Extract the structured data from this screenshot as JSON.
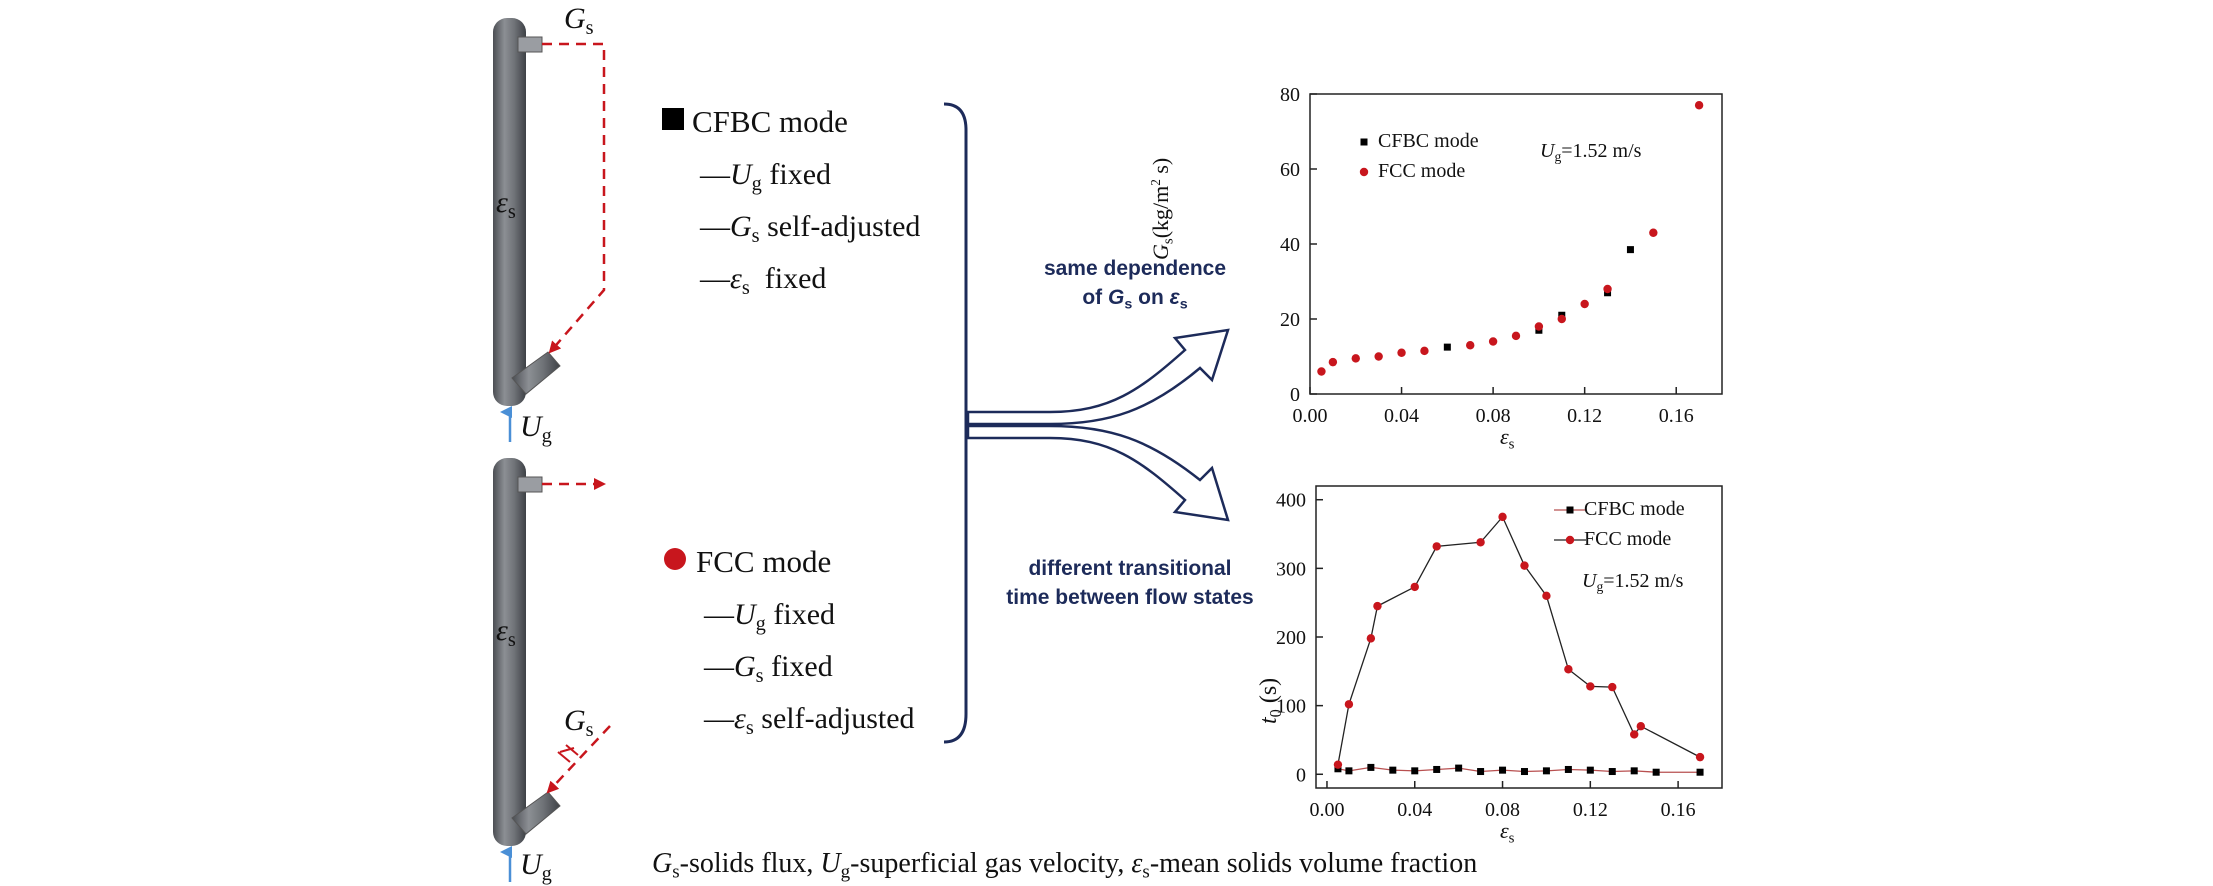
{
  "colors": {
    "cfbc": "#000000",
    "fcc": "#c8161d",
    "arrow": "#1d2b5a",
    "column": "#6f7277",
    "flow": "#c8161d",
    "gas": "#4a8fd6"
  },
  "diagram_labels": {
    "gs_top": "G",
    "gs_top_sub": "s",
    "eps_col1": "ε",
    "eps_col1_sub": "s",
    "ug_col1": "U",
    "ug_col1_sub": "g",
    "eps_col2": "ε",
    "eps_col2_sub": "s",
    "gs_side": "G",
    "gs_side_sub": "s",
    "ug_col2": "U",
    "ug_col2_sub": "g"
  },
  "modes": {
    "cfbc": {
      "title": "CFBC mode",
      "items": [
        {
          "dash": "—",
          "sym": "U",
          "sub": "g",
          "text": "fixed"
        },
        {
          "dash": "—",
          "sym": "G",
          "sub": "s",
          "text": "self-adjusted"
        },
        {
          "dash": "—",
          "sym": "ε",
          "sub": "s",
          "text": "fixed"
        }
      ]
    },
    "fcc": {
      "title": "FCC mode",
      "items": [
        {
          "dash": "—",
          "sym": "U",
          "sub": "g",
          "text": "fixed"
        },
        {
          "dash": "—",
          "sym": "G",
          "sub": "s",
          "text": "fixed"
        },
        {
          "dash": "—",
          "sym": "ε",
          "sub": "s",
          "text": "self-adjusted"
        }
      ]
    }
  },
  "notes": {
    "same_line1": "same dependence",
    "same_line2_a": "of ",
    "same_line2_g": "G",
    "same_line2_gsub": "s",
    "same_line2_b": " on ",
    "same_line2_e": "ε",
    "same_line2_esub": "s",
    "diff_line1": "different transitional",
    "diff_line2": "time between flow states"
  },
  "caption": {
    "g": "G",
    "g_sub": "s",
    "g_text": "-solids flux, ",
    "u": "U",
    "u_sub": "g",
    "u_text": "-superficial gas velocity, ",
    "e": "ε",
    "e_sub": "s",
    "e_text": "-mean solids volume fraction"
  },
  "chart_data": [
    {
      "type": "scatter",
      "xlabel": "ε",
      "xlabel_sub": "s",
      "ylabel": "G",
      "ylabel_sub": "s",
      "ylabel_unit": "(kg/m",
      "ylabel_sup": "2",
      "ylabel_unit2": " s)",
      "xlim": [
        0.0,
        0.18
      ],
      "ylim": [
        0,
        80
      ],
      "xticks": [
        "0.00",
        "0.04",
        "0.08",
        "0.12",
        "0.16"
      ],
      "xtick_values": [
        0.0,
        0.04,
        0.08,
        0.12,
        0.16
      ],
      "yticks": [
        "0",
        "20",
        "40",
        "60",
        "80"
      ],
      "ytick_values": [
        0,
        20,
        40,
        60,
        80
      ],
      "legend_position": "top-left",
      "annotation": {
        "sym": "U",
        "sub": "g",
        "text": "=1.52 m/s"
      },
      "series": [
        {
          "name": "CFBC mode",
          "marker": "square",
          "color": "#000000",
          "x": [
            0.06,
            0.1,
            0.11,
            0.13,
            0.14
          ],
          "y": [
            12.5,
            17,
            21,
            27,
            38.5
          ]
        },
        {
          "name": "FCC mode",
          "marker": "circle",
          "color": "#c8161d",
          "x": [
            0.005,
            0.01,
            0.02,
            0.03,
            0.04,
            0.05,
            0.07,
            0.08,
            0.09,
            0.1,
            0.11,
            0.12,
            0.13,
            0.15,
            0.17
          ],
          "y": [
            6,
            8.5,
            9.5,
            10,
            11,
            11.5,
            13,
            14,
            15.5,
            18,
            20,
            24,
            28,
            43,
            77
          ]
        }
      ]
    },
    {
      "type": "line",
      "xlabel": "ε",
      "xlabel_sub": "s",
      "ylabel": "t",
      "ylabel_sub": "0",
      "ylabel_unit": " (s)",
      "xlim": [
        -0.005,
        0.18
      ],
      "ylim": [
        -20,
        420
      ],
      "xticks": [
        "0.00",
        "0.04",
        "0.08",
        "0.12",
        "0.16"
      ],
      "xtick_values": [
        0.0,
        0.04,
        0.08,
        0.12,
        0.16
      ],
      "yticks": [
        "0",
        "100",
        "200",
        "300",
        "400"
      ],
      "ytick_values": [
        0,
        100,
        200,
        300,
        400
      ],
      "legend_position": "top-right",
      "annotation": {
        "sym": "U",
        "sub": "g",
        "text": "=1.52 m/s"
      },
      "series": [
        {
          "name": "CFBC mode",
          "marker": "square",
          "color": "#000000",
          "line_color": "#b85050",
          "x": [
            0.005,
            0.01,
            0.02,
            0.03,
            0.04,
            0.05,
            0.06,
            0.07,
            0.08,
            0.09,
            0.1,
            0.11,
            0.12,
            0.13,
            0.14,
            0.15,
            0.17
          ],
          "y": [
            8,
            5,
            10,
            6,
            5,
            7,
            9,
            4,
            6,
            4,
            5,
            7,
            6,
            4,
            5,
            3,
            3
          ]
        },
        {
          "name": "FCC mode",
          "marker": "circle",
          "color": "#c8161d",
          "line_color": "#222222",
          "x": [
            0.005,
            0.01,
            0.02,
            0.023,
            0.04,
            0.05,
            0.07,
            0.08,
            0.09,
            0.1,
            0.11,
            0.12,
            0.13,
            0.14,
            0.143,
            0.17
          ],
          "y": [
            14,
            102,
            198,
            245,
            273,
            332,
            338,
            375,
            304,
            260,
            153,
            128,
            127,
            58,
            70,
            25
          ]
        }
      ]
    }
  ]
}
